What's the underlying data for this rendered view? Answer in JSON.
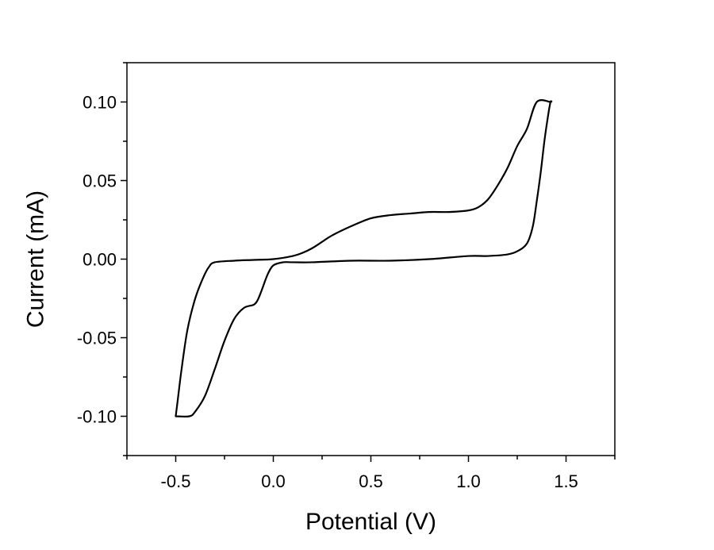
{
  "chart_data": {
    "type": "line",
    "title": "",
    "xlabel": "Potential (V)",
    "ylabel": "Current (mA)",
    "xlim": [
      -0.75,
      1.75
    ],
    "ylim": [
      -0.125,
      0.125
    ],
    "x_ticks": [
      -0.5,
      0.0,
      0.5,
      1.0,
      1.5
    ],
    "x_tick_labels": [
      "-0.5",
      "0.0",
      "0.5",
      "1.0",
      "1.5"
    ],
    "y_ticks": [
      -0.1,
      -0.05,
      0.0,
      0.05,
      0.1
    ],
    "y_tick_labels": [
      "-0.10",
      "-0.05",
      "0.00",
      "0.05",
      "0.10"
    ],
    "grid": false,
    "legend": "none",
    "colors": {
      "line": "#000000",
      "axes": "#000000"
    },
    "series": [
      {
        "x": [
          -0.5,
          -0.49,
          -0.47,
          -0.44,
          -0.4,
          -0.36,
          -0.33,
          -0.3,
          -0.2,
          -0.1,
          0.0,
          0.1,
          0.15,
          0.2,
          0.25,
          0.3,
          0.4,
          0.5,
          0.6,
          0.7,
          0.8,
          0.9,
          1.0,
          1.05,
          1.1,
          1.15,
          1.2,
          1.25,
          1.3,
          1.35,
          1.42,
          1.42,
          1.41,
          1.39,
          1.37,
          1.35,
          1.33,
          1.3,
          1.25,
          1.2,
          1.1,
          1.0,
          0.8,
          0.6,
          0.4,
          0.2,
          0.1,
          0.05,
          0.0,
          -0.03,
          -0.06,
          -0.08,
          -0.1,
          -0.15,
          -0.2,
          -0.25,
          -0.3,
          -0.35,
          -0.4,
          -0.43,
          -0.5
        ],
        "y": [
          -0.1,
          -0.09,
          -0.07,
          -0.045,
          -0.025,
          -0.012,
          -0.005,
          -0.002,
          -0.001,
          -0.0005,
          0.0,
          0.002,
          0.004,
          0.007,
          0.011,
          0.015,
          0.021,
          0.026,
          0.028,
          0.029,
          0.03,
          0.03,
          0.031,
          0.033,
          0.038,
          0.047,
          0.058,
          0.072,
          0.083,
          0.1,
          0.1,
          0.1,
          0.093,
          0.076,
          0.055,
          0.037,
          0.021,
          0.01,
          0.005,
          0.003,
          0.002,
          0.002,
          0.0,
          -0.001,
          -0.001,
          -0.002,
          -0.002,
          -0.002,
          -0.004,
          -0.01,
          -0.02,
          -0.026,
          -0.029,
          -0.031,
          -0.038,
          -0.052,
          -0.07,
          -0.087,
          -0.097,
          -0.1,
          -0.1
        ]
      }
    ]
  }
}
